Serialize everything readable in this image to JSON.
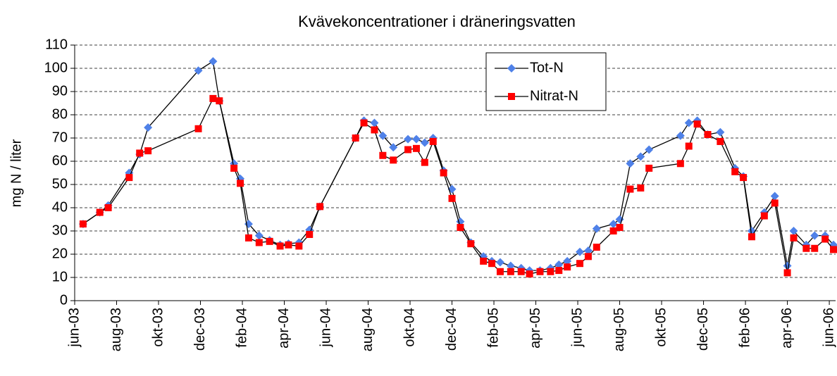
{
  "chart_data": {
    "type": "line",
    "title": "Kvävekoncentrationer i dräneringsvatten",
    "y_label": "mg N / liter",
    "x": [
      0.4,
      1.2,
      1.6,
      2.6,
      3.1,
      3.5,
      5.9,
      6.6,
      6.9,
      7.6,
      7.9,
      8.3,
      8.8,
      9.3,
      9.8,
      10.2,
      10.7,
      11.2,
      11.7,
      13.4,
      13.8,
      14.3,
      14.7,
      15.2,
      15.9,
      16.3,
      16.7,
      17.1,
      17.6,
      18.0,
      18.4,
      18.9,
      19.5,
      19.9,
      20.3,
      20.8,
      21.3,
      21.7,
      22.2,
      22.7,
      23.1,
      23.5,
      24.1,
      24.5,
      24.9,
      25.7,
      26.0,
      26.5,
      27.0,
      27.4,
      28.9,
      29.3,
      29.7,
      30.2,
      30.8,
      31.5,
      31.9,
      32.3,
      32.9,
      33.4,
      34.0,
      34.3,
      34.9,
      35.3,
      35.8,
      36.2
    ],
    "series": [
      {
        "name": "Tot-N",
        "color": "#4f81e8",
        "marker": "diamond",
        "values": [
          33,
          38,
          41,
          55,
          63,
          74.5,
          99,
          103,
          86,
          59,
          52.5,
          33,
          28,
          26,
          24,
          24.5,
          25,
          30.5,
          40.5,
          70,
          77.5,
          76.5,
          71,
          66,
          69.5,
          69.5,
          68,
          70,
          56,
          48,
          34,
          25,
          19,
          17,
          16.5,
          15,
          14,
          13,
          13,
          14,
          15.5,
          17,
          21,
          21.5,
          31,
          33,
          35,
          59,
          62,
          65,
          71,
          76.5,
          77.5,
          71.5,
          72.5,
          57,
          53.5,
          30,
          38,
          45,
          15,
          30,
          24,
          28,
          28,
          24
        ]
      },
      {
        "name": "Nitrat-N",
        "color": "#ff0000",
        "marker": "square",
        "values": [
          33,
          38,
          40,
          53,
          63.5,
          64.5,
          74,
          87,
          86,
          57,
          50.5,
          27,
          25,
          25.5,
          23.5,
          24,
          23.5,
          28.5,
          40.5,
          70,
          76.5,
          73.5,
          62.5,
          60.5,
          65,
          65.5,
          59.5,
          68.5,
          55,
          44,
          31.5,
          24.5,
          17,
          16,
          12.5,
          12.5,
          12.5,
          11.5,
          12.5,
          12.5,
          13,
          14.5,
          16,
          19,
          23,
          30,
          31.5,
          48,
          48.5,
          57,
          59,
          66.5,
          76,
          71.5,
          68.5,
          55.5,
          53,
          27.5,
          36.5,
          42,
          12,
          27,
          22.5,
          22.5,
          26.5,
          22
        ]
      }
    ],
    "xlim": [
      0,
      36.3
    ],
    "xticks": [
      {
        "value": 0,
        "label": "jun-03"
      },
      {
        "value": 2,
        "label": "aug-03"
      },
      {
        "value": 4,
        "label": "okt-03"
      },
      {
        "value": 6,
        "label": "dec-03"
      },
      {
        "value": 8,
        "label": "feb-04"
      },
      {
        "value": 10,
        "label": "apr-04"
      },
      {
        "value": 12,
        "label": "jun-04"
      },
      {
        "value": 14,
        "label": "aug-04"
      },
      {
        "value": 16,
        "label": "okt-04"
      },
      {
        "value": 18,
        "label": "dec-04"
      },
      {
        "value": 20,
        "label": "feb-05"
      },
      {
        "value": 22,
        "label": "apr-05"
      },
      {
        "value": 24,
        "label": "jun-05"
      },
      {
        "value": 26,
        "label": "aug-05"
      },
      {
        "value": 28,
        "label": "okt-05"
      },
      {
        "value": 30,
        "label": "dec-05"
      },
      {
        "value": 32,
        "label": "feb-06"
      },
      {
        "value": 34,
        "label": "apr-06"
      },
      {
        "value": 36,
        "label": "jun-06"
      }
    ],
    "ylim": [
      0,
      110
    ],
    "yticks": [
      0,
      10,
      20,
      30,
      40,
      50,
      60,
      70,
      80,
      90,
      100,
      110
    ],
    "grid": true,
    "legend": "upper center"
  }
}
